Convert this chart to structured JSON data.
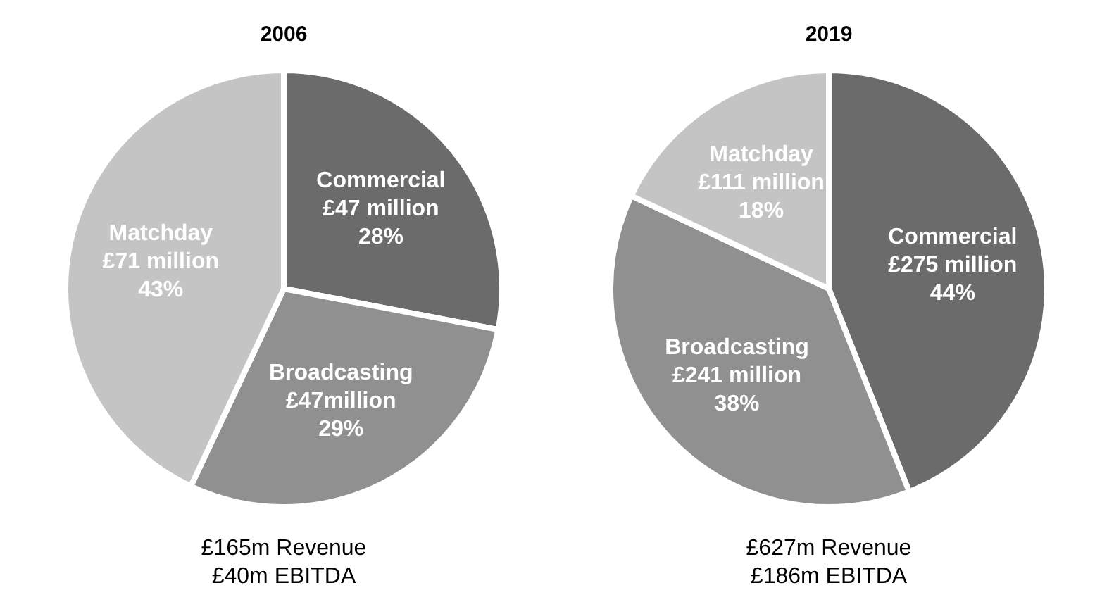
{
  "chart_data": [
    {
      "type": "pie",
      "title": "2006",
      "categories": [
        "Commercial",
        "Broadcasting",
        "Matchday"
      ],
      "values": [
        28,
        29,
        43
      ],
      "colors": [
        "#6b6b6b",
        "#909090",
        "#c4c4c4"
      ],
      "value_labels": [
        "£47 million\n28%",
        "£47million\n29%",
        "£71 million\n43%"
      ],
      "annotations": [
        "£165m Revenue",
        "£40m EBITDA"
      ]
    },
    {
      "type": "pie",
      "title": "2019",
      "categories": [
        "Commercial",
        "Broadcasting",
        "Matchday"
      ],
      "values": [
        44,
        38,
        18
      ],
      "colors": [
        "#6b6b6b",
        "#909090",
        "#c4c4c4"
      ],
      "value_labels": [
        "£275 million\n44%",
        "£241 million\n38%",
        "£111 million\n18%"
      ],
      "annotations": [
        "£627m Revenue",
        "£186m EBITDA"
      ]
    }
  ]
}
